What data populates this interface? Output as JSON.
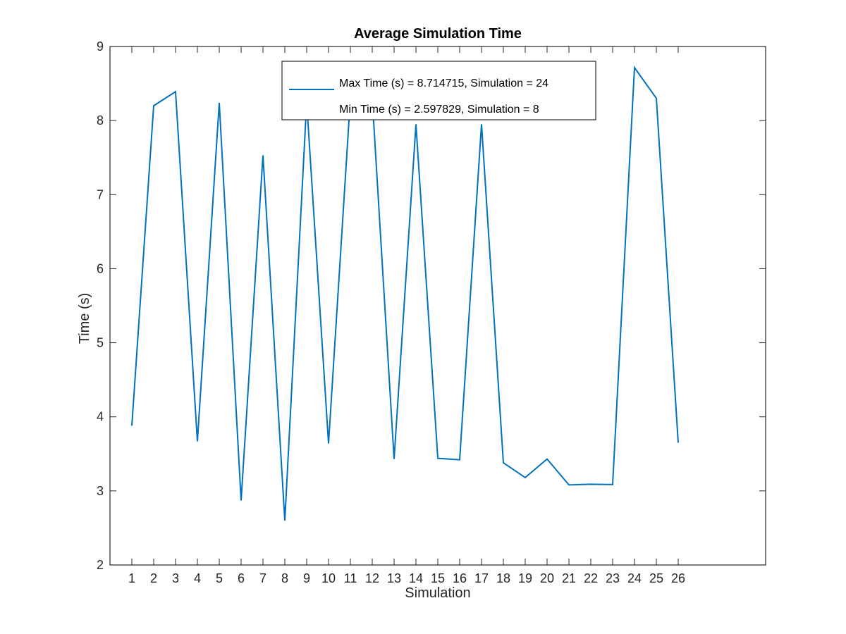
{
  "chart_data": {
    "type": "line",
    "title": "Average Simulation Time",
    "xlabel": "Simulation",
    "ylabel": "Time (s)",
    "xlim": [
      0,
      30
    ],
    "ylim": [
      2,
      9
    ],
    "xticks": [
      1,
      2,
      3,
      4,
      5,
      6,
      7,
      8,
      9,
      10,
      11,
      12,
      13,
      14,
      15,
      16,
      17,
      18,
      19,
      20,
      21,
      22,
      23,
      24,
      25,
      26
    ],
    "yticks": [
      2,
      3,
      4,
      5,
      6,
      7,
      8,
      9
    ],
    "grid": false,
    "legend_position": "top-center",
    "legend_entries": [
      "Max Time (s) = 8.714715, Simulation = 24",
      "Min Time (s) = 2.597829, Simulation = 8"
    ],
    "series": [
      {
        "color": "#0072bd",
        "x": [
          1,
          2,
          3,
          4,
          5,
          6,
          7,
          8,
          9,
          10,
          11,
          12,
          13,
          14,
          15,
          16,
          17,
          18,
          19,
          20,
          21,
          22,
          23,
          24,
          25,
          26
        ],
        "y": [
          3.88,
          8.2,
          8.39,
          3.67,
          8.24,
          2.87,
          7.53,
          2.597829,
          8.25,
          3.64,
          8.3,
          8.3,
          3.43,
          7.95,
          3.44,
          3.42,
          7.95,
          3.38,
          3.18,
          3.43,
          3.08,
          3.09,
          3.085,
          8.714715,
          8.3,
          3.65
        ]
      }
    ]
  }
}
